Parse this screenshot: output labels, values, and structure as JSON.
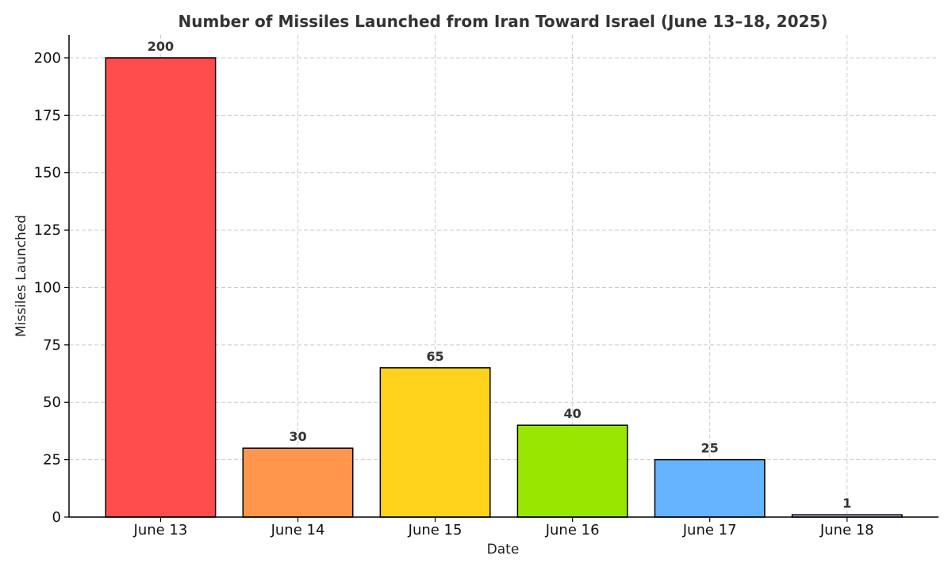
{
  "chart_data": {
    "type": "bar",
    "title": "Number of Missiles Launched from Iran Toward Israel (June 13–18, 2025)",
    "xlabel": "Date",
    "ylabel": "Missiles Launched",
    "categories": [
      "June 13",
      "June 14",
      "June 15",
      "June 16",
      "June 17",
      "June 18"
    ],
    "values": [
      200,
      30,
      65,
      40,
      25,
      1
    ],
    "colors": [
      "#ff4c4c",
      "#ff964c",
      "#ffd21c",
      "#99e600",
      "#66b3ff",
      "#c8c8ff"
    ],
    "ylim": [
      0,
      210
    ],
    "yticks": [
      0,
      25,
      50,
      75,
      100,
      125,
      150,
      175,
      200
    ],
    "grid": true,
    "legend": "none"
  }
}
